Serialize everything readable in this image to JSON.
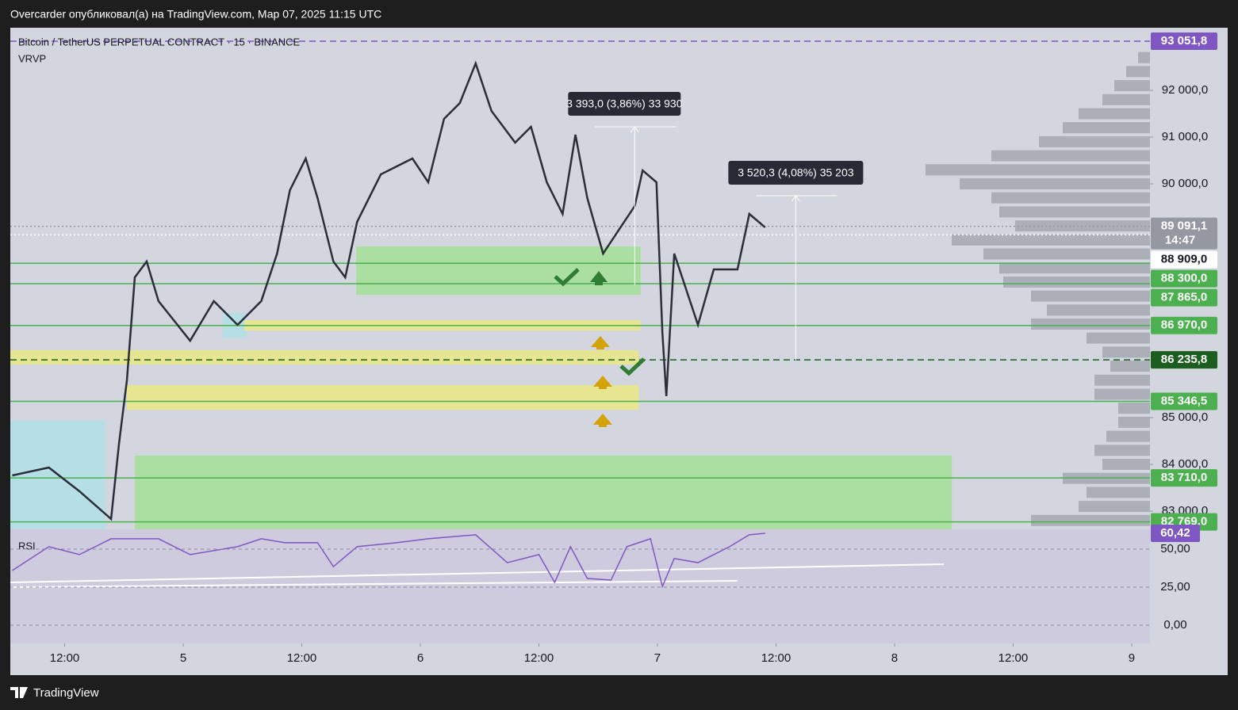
{
  "header": {
    "title": "Overcarder опубликовал(а) на TradingView.com, Мар 07, 2025 11:15 UTC"
  },
  "footer": {
    "brand": "TradingView"
  },
  "chart_data": {
    "type": "line",
    "symbol": "Bitcoin / TetherUS PERPETUAL CONTRACT · 15 · BINANCE",
    "indicator": "VRVP",
    "line_color": "#2a2e39",
    "xlim": [
      -17.5,
      97.85
    ],
    "xticks": [
      {
        "value": -12,
        "label": "12:00"
      },
      {
        "value": 0,
        "label": "5"
      },
      {
        "value": 12,
        "label": "12:00"
      },
      {
        "value": 24,
        "label": "6"
      },
      {
        "value": 36,
        "label": "12:00"
      },
      {
        "value": 48,
        "label": "7"
      },
      {
        "value": 60,
        "label": "12:00"
      },
      {
        "value": 72,
        "label": "8"
      },
      {
        "value": 84,
        "label": "12:00"
      },
      {
        "value": 96,
        "label": "9"
      }
    ],
    "ylim": [
      82610,
      93339
    ],
    "yticks": [
      {
        "value": 92000,
        "label": "92 000,0"
      },
      {
        "value": 91000,
        "label": "91 000,0"
      },
      {
        "value": 90000,
        "label": "90 000,0"
      },
      {
        "value": 85000,
        "label": "85 000,0"
      },
      {
        "value": 84000,
        "label": "84 000,0"
      },
      {
        "value": 83000,
        "label": "83 000,0"
      }
    ],
    "x": [
      -17.3,
      -13.6,
      -10.5,
      -7.3,
      -6.5,
      -5.7,
      -4.9,
      -3.7,
      -2.5,
      0.7,
      3.1,
      5.5,
      7.9,
      9.5,
      10.8,
      12.4,
      13.6,
      15.2,
      16.4,
      17.6,
      20.0,
      23.2,
      24.8,
      26.4,
      28.0,
      29.6,
      31.2,
      33.6,
      35.2,
      36.8,
      38.4,
      39.7,
      40.9,
      42.5,
      44.1,
      45.7,
      46.5,
      47.9,
      48.5,
      48.9,
      49.7,
      51.3,
      52.1,
      53.7,
      56.1,
      57.3,
      58.9
    ],
    "values": [
      83763,
      83932,
      83424,
      82831,
      84441,
      85797,
      88000,
      88339,
      87492,
      86644,
      87492,
      86983,
      87492,
      88508,
      89864,
      90542,
      89695,
      88339,
      88000,
      89186,
      90203,
      90542,
      90034,
      91390,
      91729,
      92576,
      91559,
      90881,
      91220,
      90034,
      89356,
      91051,
      89695,
      88508,
      89017,
      89525,
      90288,
      90034,
      86814,
      85458,
      88508,
      87492,
      86983,
      88169,
      88169,
      89356,
      89068
    ],
    "price_lines": [
      {
        "value": 93051.8,
        "label": "93 051,8",
        "color": "#7e57c2",
        "line": "dashed"
      },
      {
        "value": 89091.1,
        "label": "89 091,1",
        "sublabel": "14:47",
        "color": "#9598a1",
        "line": "dotted"
      },
      {
        "value": 88909.0,
        "label": "88 909,0",
        "color": "#ffffff",
        "text_color": "#131722",
        "line": "dotted"
      },
      {
        "value": 88300.0,
        "label": "88 300,0",
        "color": "#4caf50",
        "line": "solid"
      },
      {
        "value": 87865.0,
        "label": "87 865,0",
        "color": "#4caf50",
        "line": "solid"
      },
      {
        "value": 86970.0,
        "label": "86 970,0",
        "color": "#4caf50",
        "line": "solid"
      },
      {
        "value": 86235.8,
        "label": "86 235,8",
        "color": "#1b5e20",
        "line": "dashed"
      },
      {
        "value": 85346.5,
        "label": "85 346,5",
        "color": "#4caf50",
        "line": "solid"
      },
      {
        "value": 83710.0,
        "label": "83 710,0",
        "color": "#4caf50",
        "line": "solid"
      },
      {
        "value": 82769.0,
        "label": "82 769,0",
        "color": "#4caf50",
        "line": "solid"
      }
    ],
    "zones": [
      {
        "from": -17.5,
        "to": -7.9,
        "low": 82610,
        "high": 84940,
        "color": "#b2e0e6"
      },
      {
        "from": 4.0,
        "to": 6.4,
        "low": 86700,
        "high": 87240,
        "color": "#b2e0e6"
      },
      {
        "from": 17.5,
        "to": 46.3,
        "low": 87627,
        "high": 88661,
        "color": "#a5e09a"
      },
      {
        "from": 6.2,
        "to": 46.3,
        "low": 86864,
        "high": 87085,
        "color": "#e8e88a"
      },
      {
        "from": -17.5,
        "to": 46.1,
        "low": 86136,
        "high": 86441,
        "color": "#e8e88a"
      },
      {
        "from": -5.7,
        "to": 46.1,
        "low": 85169,
        "high": 85695,
        "color": "#e8e88a"
      },
      {
        "from": -4.9,
        "to": 77.8,
        "low": 82610,
        "high": 84186,
        "color": "#a5e09a"
      }
    ],
    "measures": [
      {
        "label": "3 393,0 (3,86%) 33 930",
        "x": 45.7,
        "high": 91220,
        "low": 87827
      },
      {
        "label": "3 520,3 (4,08%) 35 203",
        "x": 62.0,
        "high": 89746,
        "low": 86226
      }
    ],
    "volume_profile": {
      "prices": [
        92700,
        92400,
        92100,
        91800,
        91500,
        91200,
        90900,
        90600,
        90300,
        90000,
        89700,
        89400,
        89100,
        88800,
        88500,
        88200,
        87900,
        87600,
        87300,
        87000,
        86700,
        86400,
        86100,
        85800,
        85500,
        85200,
        84900,
        84600,
        84300,
        84000,
        83700,
        83400,
        83100,
        82800
      ],
      "volumes": [
        15,
        30,
        45,
        60,
        90,
        110,
        140,
        200,
        283,
        240,
        200,
        190,
        170,
        250,
        210,
        190,
        185,
        150,
        130,
        150,
        80,
        60,
        50,
        70,
        70,
        40,
        40,
        55,
        70,
        60,
        110,
        80,
        90,
        150
      ]
    },
    "rsi": {
      "name": "RSI",
      "color": "#7e57c2",
      "ylim": [
        -12,
        63
      ],
      "yticks": [
        {
          "value": 0,
          "label": "0,00"
        },
        {
          "value": 25,
          "label": "25,00"
        },
        {
          "value": 50,
          "label": "50,00"
        }
      ],
      "x": [
        -17.3,
        -13.6,
        -10.5,
        -7.3,
        -2.5,
        0.7,
        5.5,
        7.9,
        10.3,
        13.6,
        15.2,
        17.6,
        21.6,
        24.8,
        29.6,
        32.8,
        36.0,
        37.6,
        39.2,
        40.9,
        43.3,
        44.9,
        47.3,
        48.5,
        49.7,
        52.1,
        55.3,
        57.3,
        58.9
      ],
      "values": [
        35.9,
        51.6,
        46.4,
        56.8,
        56.8,
        46.4,
        51.6,
        56.8,
        54.2,
        54.2,
        38.5,
        51.6,
        54.2,
        56.8,
        59.4,
        41.1,
        46.4,
        28.1,
        51.6,
        30.7,
        29.7,
        51.6,
        56.8,
        25.5,
        43.8,
        41.1,
        51.6,
        59.4,
        60.42
      ],
      "last_label": {
        "value": 60.42,
        "label": "60,42"
      }
    }
  }
}
